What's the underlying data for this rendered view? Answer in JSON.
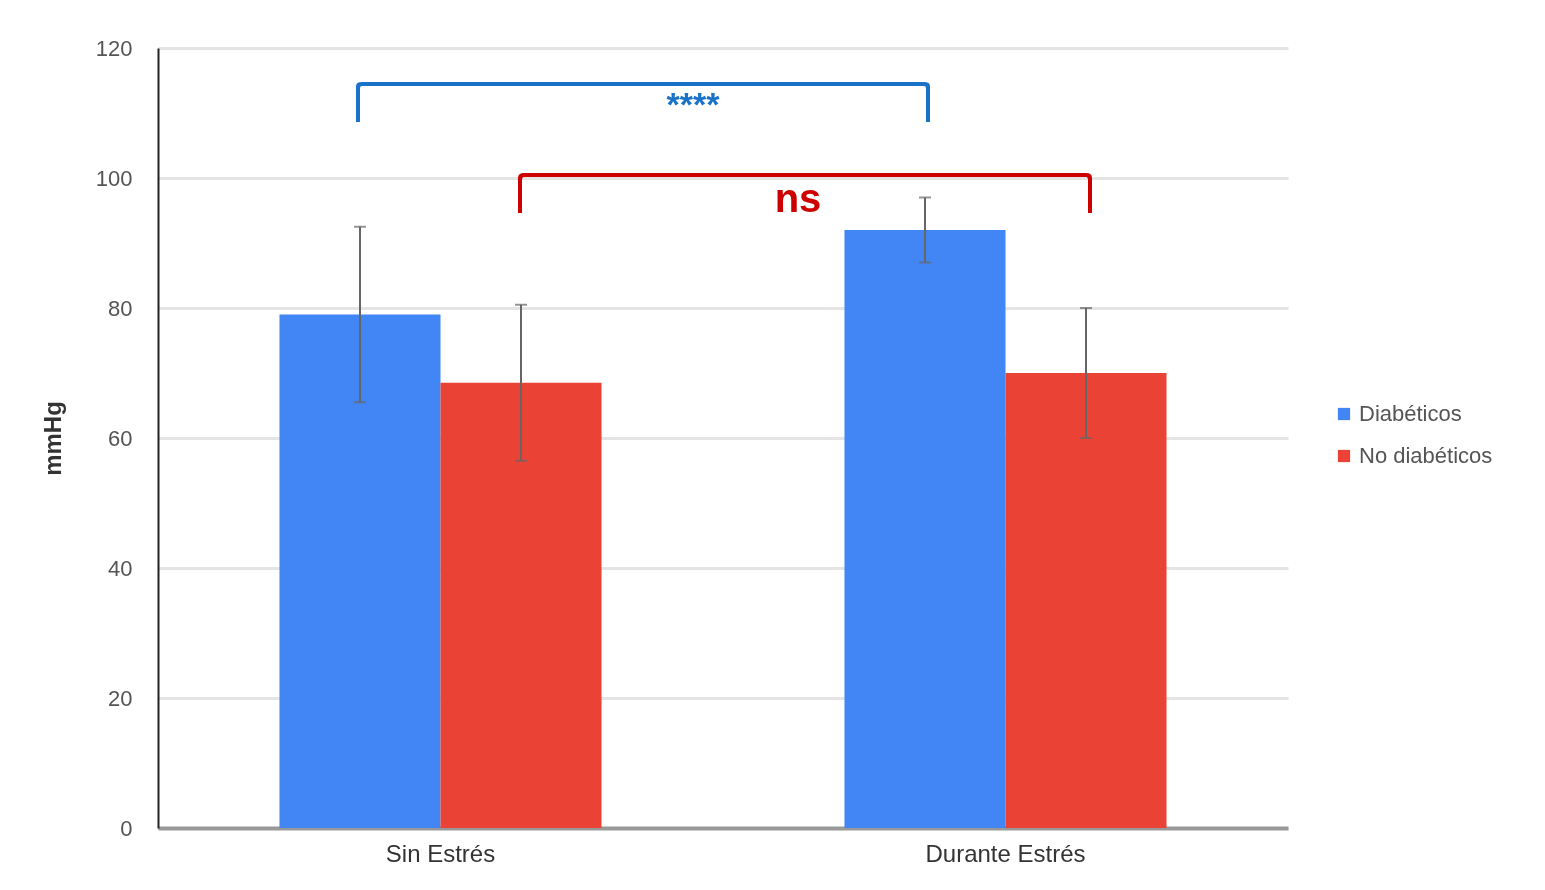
{
  "chart_data": {
    "type": "bar",
    "ylabel": "mmHg",
    "categories": [
      "Sin Estrés",
      "Durante Estrés"
    ],
    "series": [
      {
        "name": "Diabéticos",
        "color": "#4285f4",
        "values": [
          79,
          92
        ],
        "errors": [
          13.5,
          5
        ]
      },
      {
        "name": "No diabéticos",
        "color": "#ea4335",
        "values": [
          68.5,
          70
        ],
        "errors": [
          12,
          10
        ]
      }
    ],
    "ylim": [
      0,
      120
    ],
    "yticks": [
      0,
      20,
      40,
      60,
      80,
      100,
      120
    ],
    "grid": "y",
    "legend": "right",
    "annotations": [
      "****",
      "ns"
    ]
  }
}
